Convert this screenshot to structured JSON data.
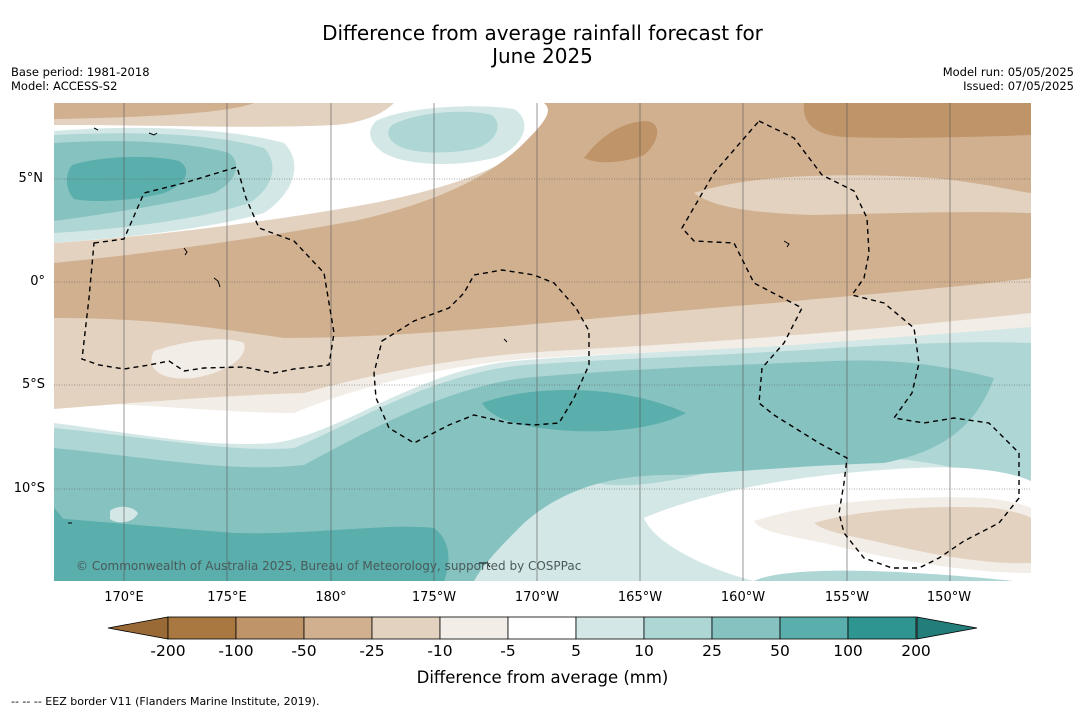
{
  "title_line1": "Difference from average rainfall forecast for",
  "title_line2": "June 2025",
  "meta": {
    "base_period": "Base period: 1981-2018",
    "model": "Model: ACCESS-S2",
    "model_run": "Model run: 05/05/2025",
    "issued": "Issued: 07/05/2025"
  },
  "lat_labels": [
    "5°N",
    "0°",
    "5°S",
    "10°S"
  ],
  "lon_labels": [
    "170°E",
    "175°E",
    "180°",
    "175°W",
    "170°W",
    "165°W",
    "160°W",
    "155°W",
    "150°W"
  ],
  "copyright": "© Commonwealth of Australia 2025, Bureau of Meteorology, supported by COSPPac",
  "colorbar": {
    "ticks": [
      "-200",
      "-100",
      "-50",
      "-25",
      "-10",
      "-5",
      "5",
      "10",
      "25",
      "50",
      "100",
      "200"
    ],
    "label": "Difference from average (mm)",
    "colors": [
      "#a87840",
      "#be9468",
      "#d1b090",
      "#e3d2c0",
      "#f2ede6",
      "#ffffff",
      "#d3e8e6",
      "#add6d4",
      "#86c2c0",
      "#5aaeab",
      "#2f9590"
    ],
    "extend_low_color": "#996a35",
    "extend_high_color": "#237d78"
  },
  "legend_note": "-- -- -- EEZ border V11 (Flanders Marine Institute, 2019)."
}
